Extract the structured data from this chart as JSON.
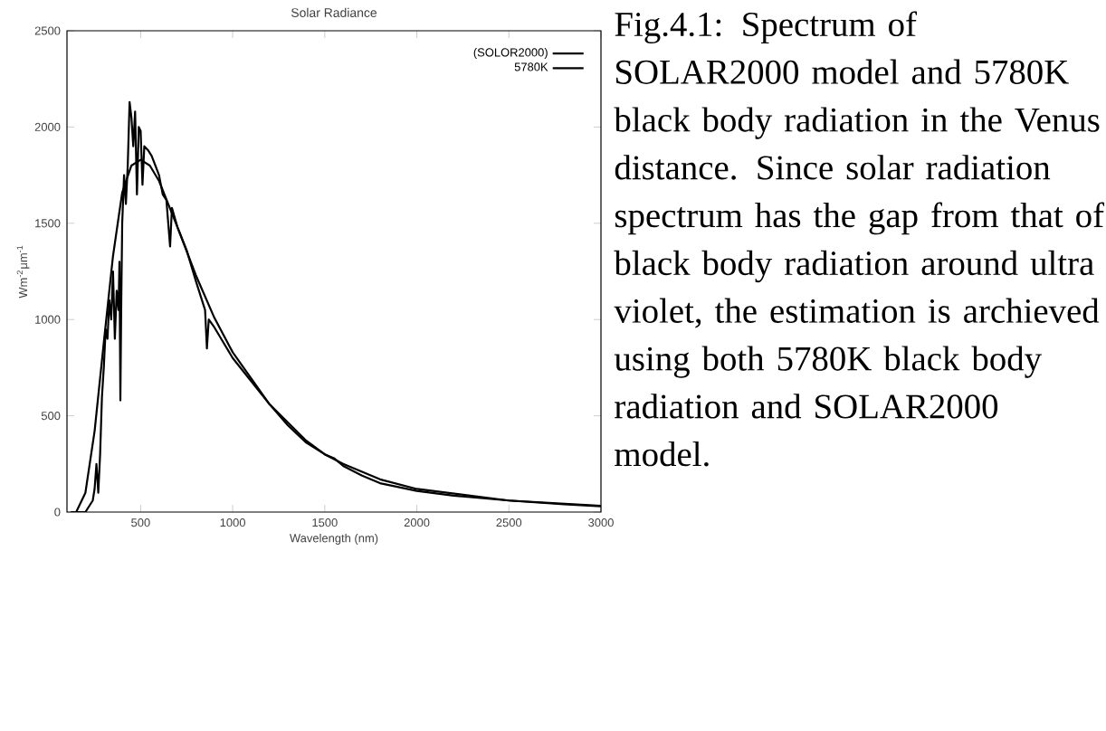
{
  "chart_data": {
    "type": "line",
    "title": "Solar Radiance",
    "xlabel": "Wavelength (nm)",
    "ylabel": "Wm$^{-2}$μm$^{-1}$",
    "xlim": [
      100,
      3000
    ],
    "ylim": [
      0,
      2500
    ],
    "xticks": [
      500,
      1000,
      1500,
      2000,
      2500,
      3000
    ],
    "yticks": [
      0,
      500,
      1000,
      1500,
      2000,
      2500
    ],
    "grid": false,
    "legend": "top right",
    "annotations": [
      "Fig.4.1: Spectrum of SOLAR2000 model and 5780K black body radiation in the Venus distance. Since solar radiation spectrum has the gap from that of black body radiation around ultra violet, the estimation is archieved using both 5780K black body radiation and SOLAR2000 model."
    ],
    "series": [
      {
        "name": "(SOLOR2000)",
        "color": "#000000",
        "x": [
          120,
          200,
          220,
          240,
          250,
          260,
          270,
          280,
          290,
          300,
          310,
          320,
          330,
          340,
          350,
          360,
          370,
          380,
          385,
          390,
          395,
          400,
          410,
          420,
          430,
          440,
          450,
          460,
          470,
          480,
          490,
          500,
          510,
          520,
          540,
          560,
          580,
          600,
          620,
          640,
          660,
          670,
          700,
          750,
          800,
          850,
          860,
          870,
          900,
          950,
          1000,
          1100,
          1200,
          1300,
          1400,
          1500,
          1550,
          1600,
          1700,
          1800,
          1900,
          2000,
          2200,
          2500,
          2800,
          3000
        ],
        "values": [
          0,
          0,
          30,
          60,
          120,
          250,
          100,
          300,
          600,
          750,
          950,
          900,
          1100,
          1000,
          1250,
          900,
          1150,
          1050,
          1300,
          580,
          1100,
          1500,
          1750,
          1600,
          1800,
          2130,
          2050,
          1900,
          2080,
          1650,
          2000,
          1980,
          1700,
          1900,
          1880,
          1850,
          1800,
          1750,
          1650,
          1620,
          1380,
          1580,
          1480,
          1360,
          1200,
          1050,
          850,
          1000,
          960,
          880,
          800,
          680,
          560,
          450,
          360,
          300,
          280,
          240,
          190,
          150,
          130,
          110,
          85,
          60,
          40,
          30
        ]
      },
      {
        "name": "5780K",
        "color": "#000000",
        "x": [
          150,
          200,
          250,
          300,
          350,
          400,
          450,
          500,
          550,
          600,
          700,
          800,
          900,
          1000,
          1200,
          1400,
          1500,
          1600,
          1800,
          2000,
          2500,
          3000
        ],
        "values": [
          0,
          100,
          420,
          880,
          1330,
          1660,
          1800,
          1830,
          1800,
          1720,
          1480,
          1230,
          1010,
          830,
          560,
          370,
          300,
          250,
          170,
          120,
          60,
          33
        ]
      }
    ]
  }
}
